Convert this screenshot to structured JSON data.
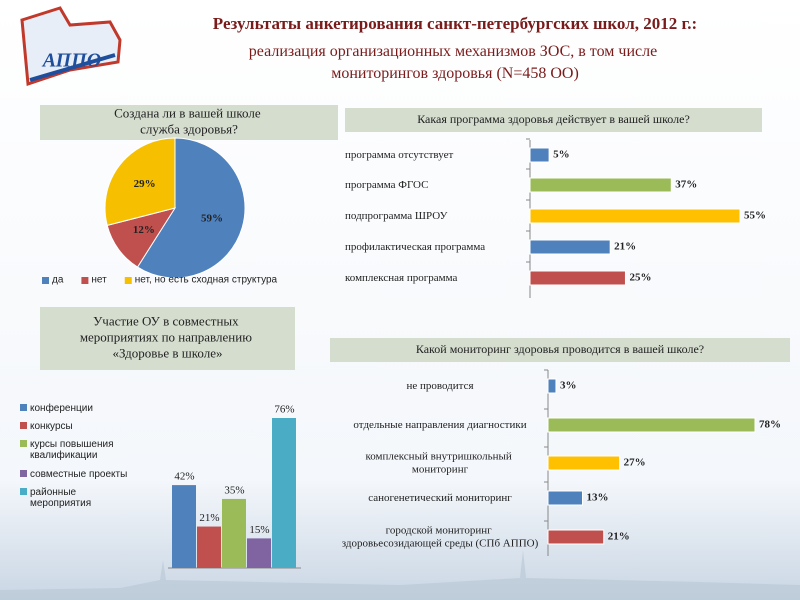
{
  "header": {
    "logo": "АППО",
    "title": "Результаты анкетирования санкт-петербургских школ, 2012 г.:",
    "subtitle": "реализация организационных механизмов ЗОС, в том числе мониторингов здоровья (N=458 ОО)"
  },
  "chart_data": [
    {
      "type": "pie",
      "title": "Создана ли в вашей школе служба здоровья?",
      "categories": [
        "да",
        "нет",
        "нет, но есть сходная структура"
      ],
      "values": [
        59,
        12,
        29
      ],
      "value_labels": [
        "59%",
        "12%",
        "29%"
      ],
      "colors": [
        "#4f81bd",
        "#c0504d",
        "#f6c000"
      ],
      "legend": "bottom"
    },
    {
      "type": "barh",
      "title": "Какая программа здоровья действует в вашей школе?",
      "categories": [
        "программа отсутствует",
        "программа ФГОС",
        "подпрограмма ШРОУ",
        "профилактическая программа",
        "комплексная программа"
      ],
      "values": [
        5,
        37,
        55,
        21,
        25
      ],
      "value_labels": [
        "5%",
        "37%",
        "55%",
        "21%",
        "25%"
      ],
      "colors": [
        "#4f81bd",
        "#9bbb59",
        "#ffc000",
        "#4f81bd",
        "#c0504d"
      ]
    },
    {
      "type": "bar",
      "title": "Участие ОУ в совместных мероприятиях по направлению «Здоровье в школе»",
      "series": [
        {
          "name": "конференции",
          "color": "#4f81bd",
          "values": [
            42
          ],
          "value_labels": [
            "42%"
          ]
        },
        {
          "name": "конкурсы",
          "color": "#c0504d",
          "values": [
            21
          ],
          "value_labels": [
            "21%"
          ]
        },
        {
          "name": "курсы повышения квалификации",
          "color": "#9bbb59",
          "values": [
            35
          ],
          "value_labels": [
            "35%"
          ]
        },
        {
          "name": "совместные проекты",
          "color": "#8064a2",
          "values": [
            15
          ],
          "value_labels": [
            "15%"
          ]
        },
        {
          "name": "районные мероприятия",
          "color": "#4bacc6",
          "values": [
            76
          ],
          "value_labels": [
            "76%"
          ]
        }
      ],
      "legend": "left"
    },
    {
      "type": "barh",
      "title": "Какой мониторинг здоровья проводится в вашей школе?",
      "categories": [
        "не проводится",
        "отдельные направления диагностики",
        "комплексный внутришкольный мониторинг",
        "саногенетический мониторинг",
        "городской мониторинг здоровьесозидающей среды (СПб АППО)"
      ],
      "values": [
        3,
        78,
        27,
        13,
        21
      ],
      "value_labels": [
        "3%",
        "78%",
        "27%",
        "13%",
        "21%"
      ],
      "colors": [
        "#4f81bd",
        "#9bbb59",
        "#ffc000",
        "#4f81bd",
        "#c0504d"
      ]
    }
  ]
}
